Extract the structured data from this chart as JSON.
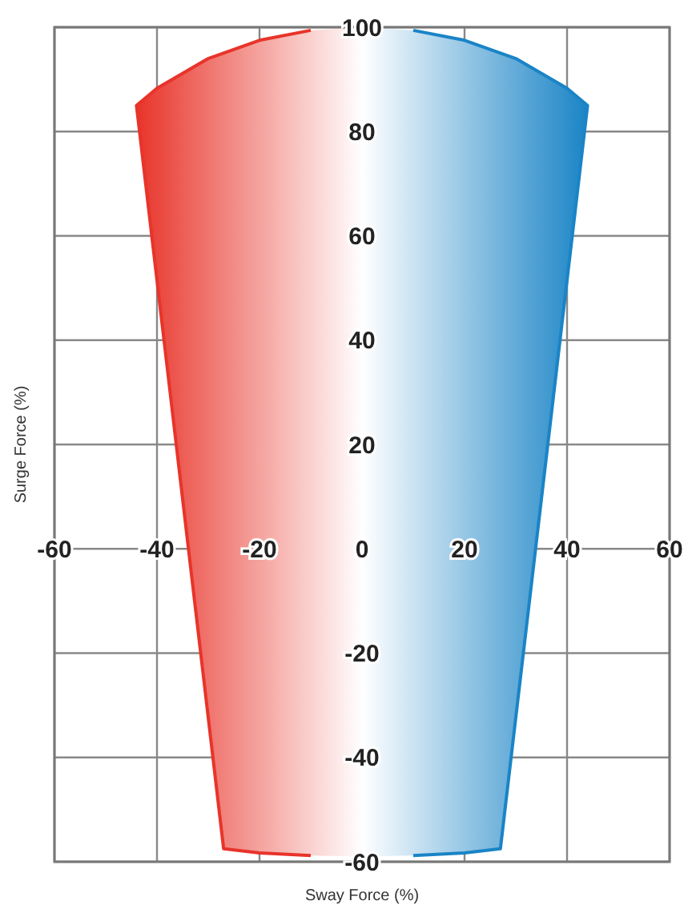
{
  "chart_data": {
    "type": "area",
    "xlabel": "Sway Force (%)",
    "ylabel": "Surge Force (%)",
    "xlim": [
      -60,
      60
    ],
    "ylim": [
      -60,
      100
    ],
    "xticks": [
      -60,
      -40,
      -20,
      0,
      20,
      40,
      60
    ],
    "yticks": [
      -60,
      -40,
      -20,
      {
        "value": 0,
        "label": null
      },
      20,
      40,
      60,
      80,
      100
    ],
    "grid": true,
    "series": [
      {
        "color": "#e8342a",
        "x": [
          0,
          -10,
          -20,
          -30,
          -40,
          -44,
          -27,
          -20,
          -10,
          0
        ],
        "values": [
          100,
          99.4,
          97.5,
          94,
          88.3,
          85,
          -57.5,
          -58.3,
          -58.8,
          -59
        ]
      },
      {
        "color": "#1a84c6",
        "x": [
          0,
          10,
          20,
          30,
          40,
          44,
          27,
          20,
          10,
          0
        ],
        "values": [
          100,
          99.4,
          97.5,
          94,
          88.3,
          85,
          -57.5,
          -58.3,
          -58.8,
          -59
        ]
      }
    ]
  }
}
